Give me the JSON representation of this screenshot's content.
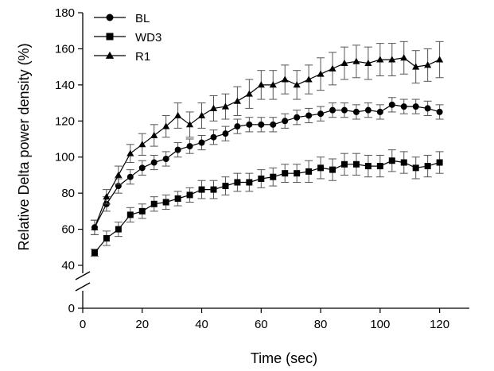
{
  "chart_data": {
    "type": "line",
    "title": "",
    "xlabel": "Time (sec)",
    "ylabel": "Relative Delta power density (%)",
    "xlim": [
      0,
      130
    ],
    "x_ticks": [
      0,
      20,
      40,
      60,
      80,
      100,
      120
    ],
    "y_ticks_upper": [
      40,
      60,
      80,
      100,
      120,
      140,
      160,
      180
    ],
    "y_tick_lower": 0,
    "ylim_upper": [
      35,
      180
    ],
    "y_axis_break": true,
    "grid": false,
    "legend_position": "top-left",
    "x": [
      4,
      8,
      12,
      16,
      20,
      24,
      28,
      32,
      36,
      40,
      44,
      48,
      52,
      56,
      60,
      64,
      68,
      72,
      76,
      80,
      84,
      88,
      92,
      96,
      100,
      104,
      108,
      112,
      116,
      120
    ],
    "series": [
      {
        "name": "BL",
        "marker": "circle",
        "values": [
          61,
          74,
          84,
          89,
          94,
          97,
          99,
          104,
          106,
          108,
          111,
          113,
          117,
          118,
          118,
          118,
          120,
          122,
          123,
          124,
          126,
          126,
          125,
          126,
          125,
          129,
          128,
          128,
          127,
          125
        ],
        "errors": [
          4,
          4,
          4,
          4,
          4,
          4,
          4,
          4,
          4,
          4,
          4,
          4,
          4,
          4,
          4,
          4,
          4,
          4,
          4,
          4,
          4,
          4,
          4,
          4,
          4,
          4,
          4,
          4,
          4,
          4
        ]
      },
      {
        "name": "WD3",
        "marker": "square",
        "values": [
          47,
          55,
          60,
          68,
          70,
          74,
          75,
          77,
          79,
          82,
          82,
          84,
          86,
          86,
          88,
          89,
          91,
          91,
          92,
          94,
          93,
          96,
          96,
          95,
          95,
          98,
          97,
          94,
          95,
          97
        ],
        "errors": [
          2,
          4,
          4,
          4,
          4,
          4,
          4,
          4,
          4,
          5,
          5,
          5,
          5,
          5,
          5,
          5,
          5,
          5,
          6,
          6,
          6,
          6,
          6,
          6,
          6,
          6,
          6,
          6,
          6,
          6
        ]
      },
      {
        "name": "R1",
        "marker": "triangle",
        "values": [
          61,
          78,
          90,
          102,
          107,
          112,
          117,
          123,
          118,
          123,
          127,
          128,
          131,
          135,
          140,
          140,
          143,
          140,
          143,
          146,
          149,
          152,
          153,
          152,
          154,
          154,
          155,
          150,
          151,
          154
        ],
        "errors": [
          4,
          4,
          5,
          5,
          6,
          6,
          6,
          7,
          7,
          7,
          7,
          7,
          8,
          8,
          8,
          8,
          8,
          8,
          8,
          9,
          9,
          9,
          9,
          9,
          9,
          9,
          9,
          9,
          9,
          10
        ]
      }
    ]
  }
}
